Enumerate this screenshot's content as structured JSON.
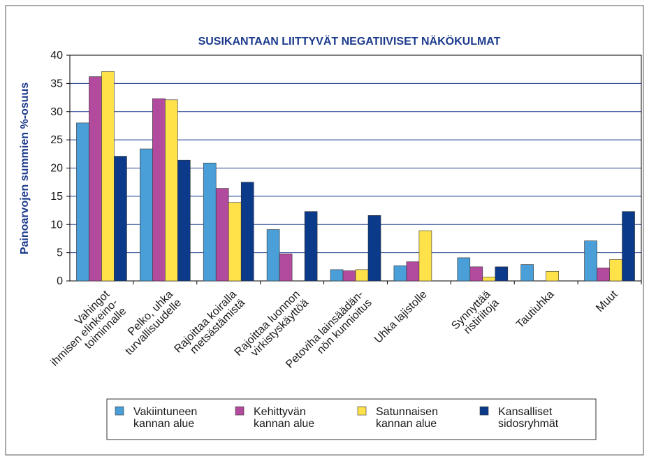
{
  "chart_data": {
    "type": "bar",
    "title": "SUSIKANTAAN LIITTYVÄT NEGATIIVISET NÄKÖKULMAT",
    "ylabel": "Painoarvojen summien %-osuus",
    "categories": [
      "Vahingot\nihmisen elinkeino-\ntoiminnalle",
      "Pelko, uhka\nturvallisuudelle",
      "Rajoittaa koiralla\nmetsästämistä",
      "Rajoittaa luonnon\nvirkistyskäyttöä",
      "Petoviha lainsäädän-\nnön kunnioitus",
      "Uhka lajistolle",
      "Synnyttää\nristiriitoja",
      "Tautiuhka",
      "Muut"
    ],
    "series": [
      {
        "name": "Vakiintuneen\nkannan alue",
        "color": "#4a9fd8",
        "values": [
          28.0,
          23.4,
          20.9,
          9.1,
          2.0,
          2.7,
          4.1,
          2.9,
          7.1
        ]
      },
      {
        "name": "Kehittyvän\nkannan alue",
        "color": "#b24a9e",
        "values": [
          36.2,
          32.3,
          16.4,
          4.8,
          1.8,
          3.4,
          2.5,
          0,
          2.3
        ]
      },
      {
        "name": "Satunnaisen\nkannan alue",
        "color": "#ffe24a",
        "values": [
          37.1,
          32.1,
          13.9,
          0,
          2.0,
          8.9,
          0.7,
          1.7,
          3.8
        ]
      },
      {
        "name": "Kansalliset\nsidosryhmät",
        "color": "#0b3a8a",
        "values": [
          22.1,
          21.4,
          17.5,
          12.3,
          11.6,
          0,
          2.5,
          0,
          12.3
        ]
      }
    ],
    "ylim": [
      0,
      40
    ],
    "yticks": [
      0,
      5,
      10,
      15,
      20,
      25,
      30,
      35,
      40
    ],
    "grid": true
  }
}
